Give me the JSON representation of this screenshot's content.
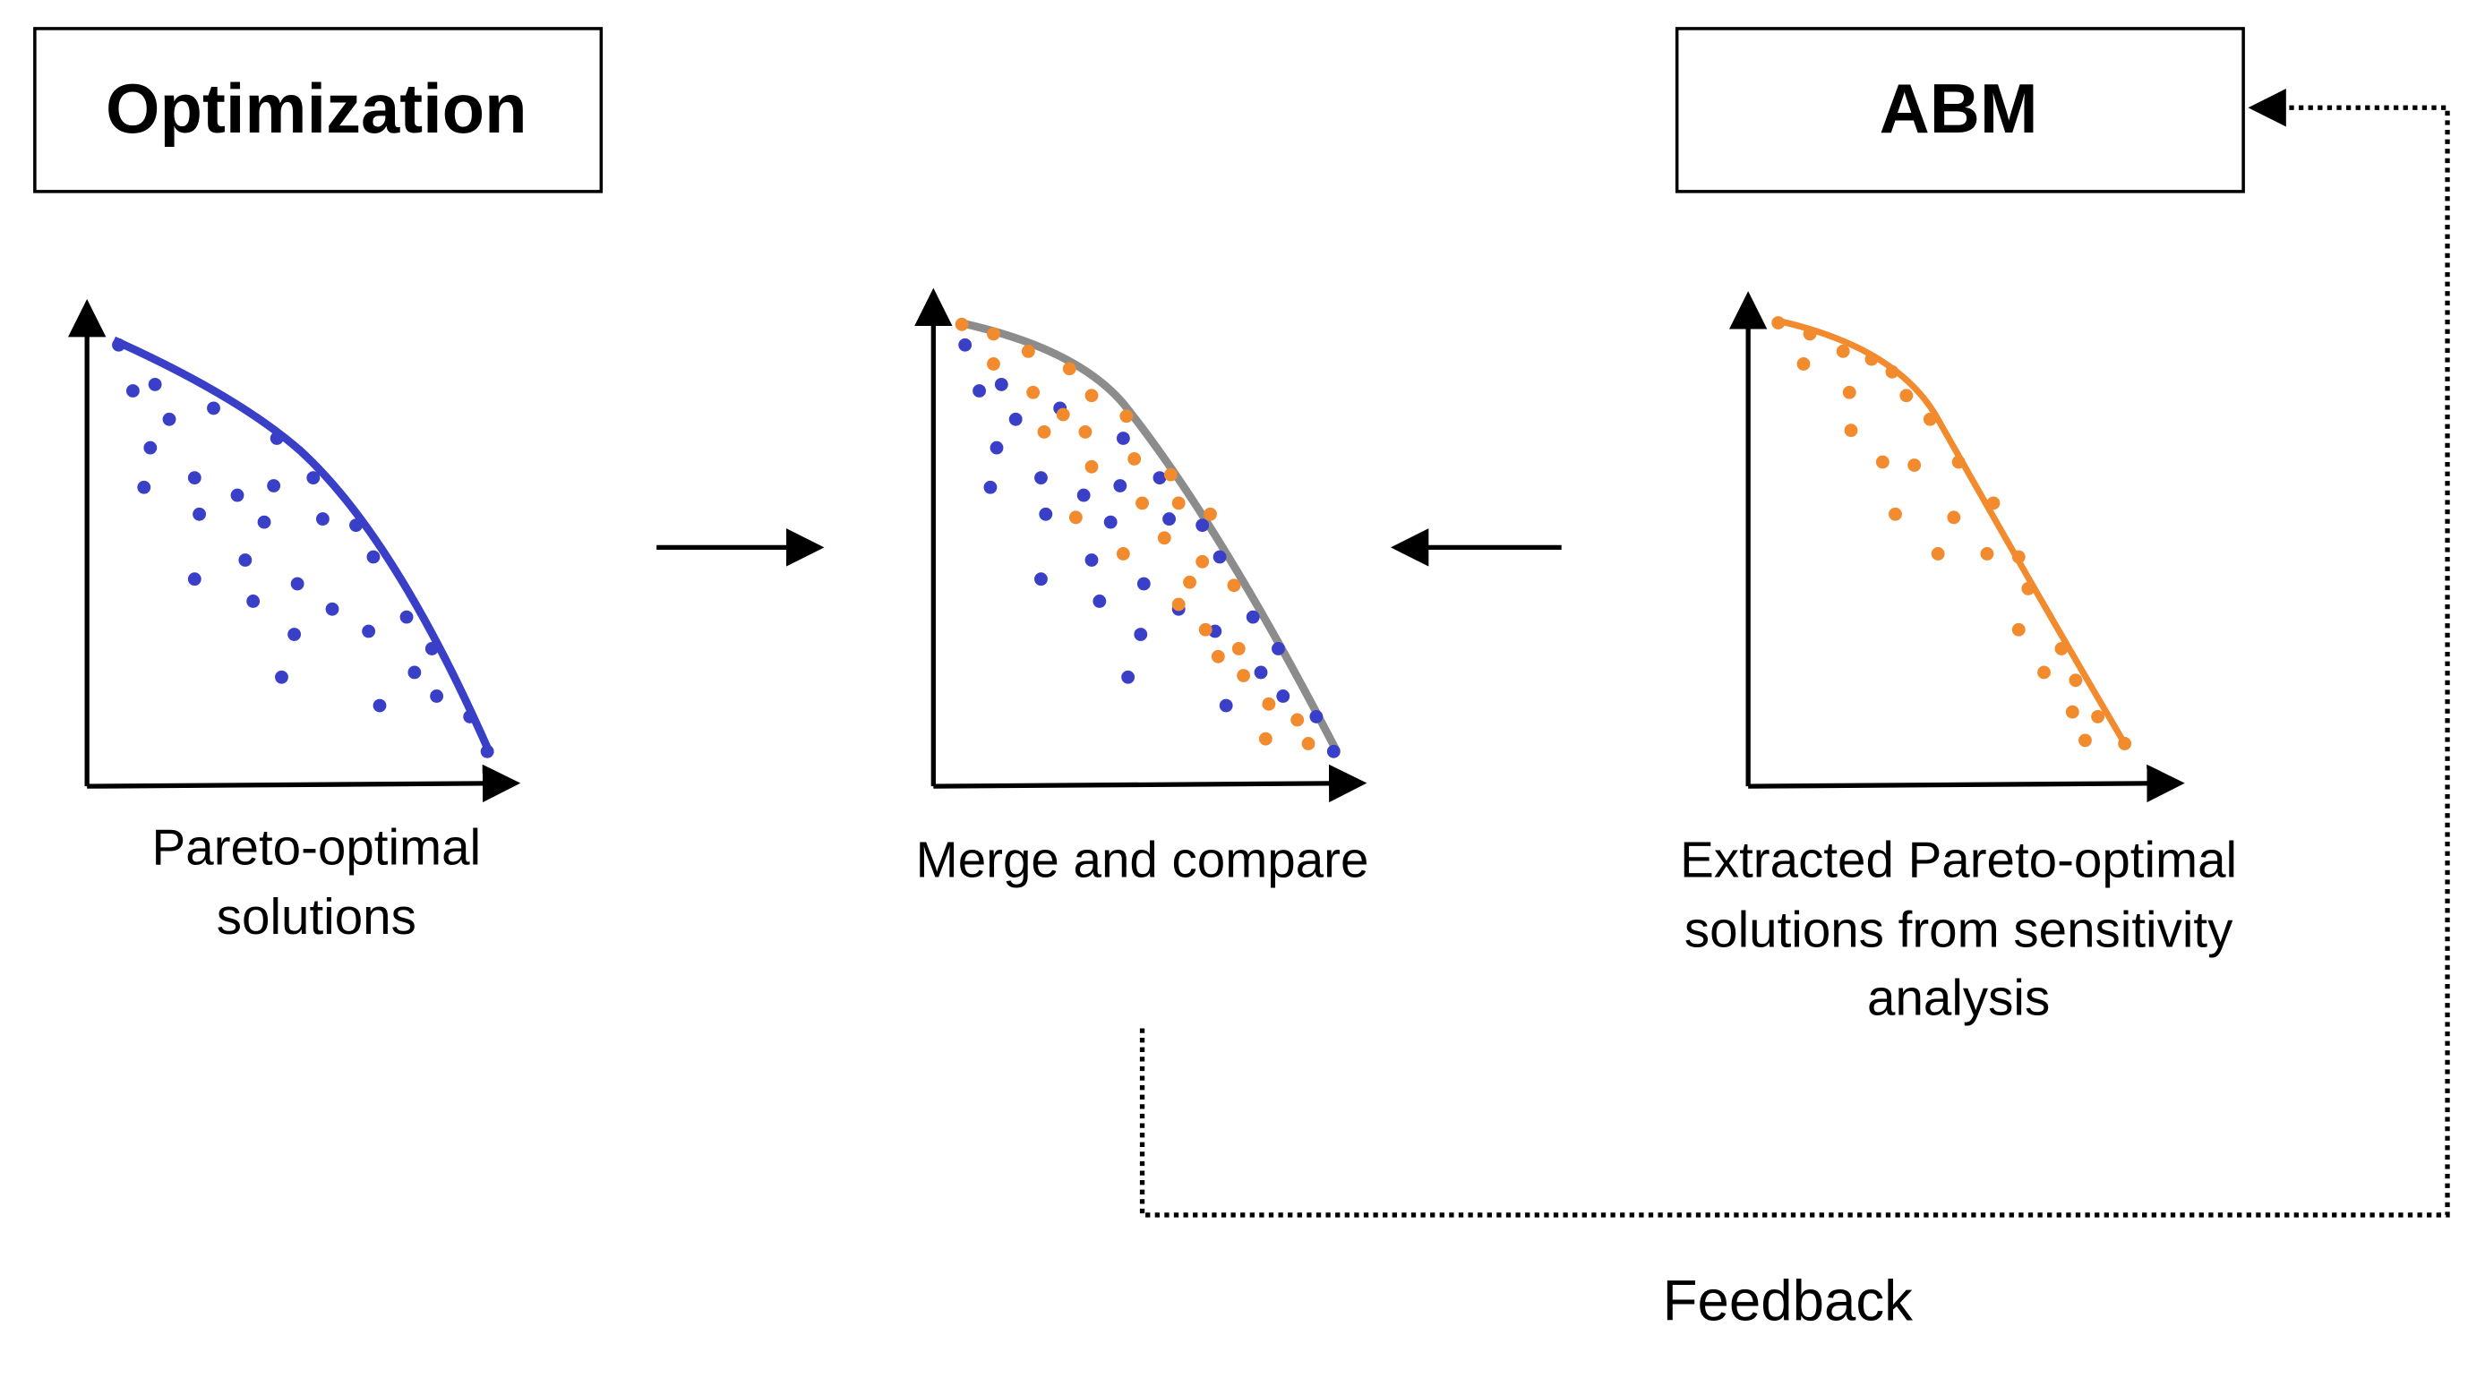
{
  "labels": {
    "left_box": "Optimization",
    "right_box": "ABM",
    "feedback": "Feedback"
  },
  "panels": [
    {
      "caption_lines": [
        "Pareto-optimal",
        "solutions"
      ]
    },
    {
      "caption_lines": [
        "Merge and compare"
      ]
    },
    {
      "caption_lines": [
        "Extracted Pareto-optimal",
        "solutions from sensitivity",
        "analysis"
      ]
    }
  ]
}
